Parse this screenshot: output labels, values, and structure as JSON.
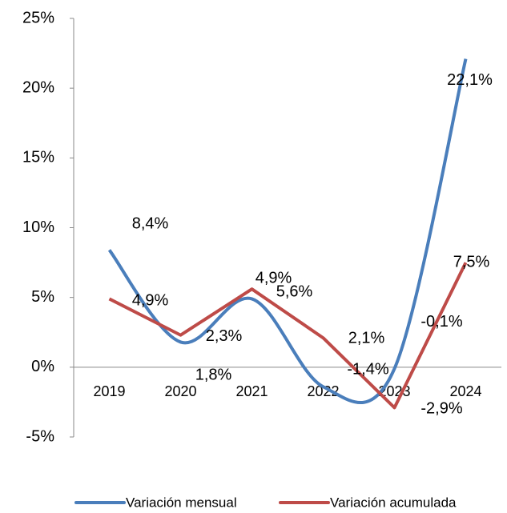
{
  "chart_data": {
    "type": "line",
    "categories": [
      "2019",
      "2020",
      "2021",
      "2022",
      "2023",
      "2024"
    ],
    "series": [
      {
        "name": "Variación mensual",
        "color": "#4a7ebb",
        "smooth": true,
        "values": [
          8.4,
          1.8,
          4.9,
          -1.4,
          -0.1,
          22.1
        ],
        "value_labels": [
          "8,4%",
          "1,8%",
          "4,9%",
          "-1,4%",
          "-0,1%",
          "22,1%"
        ]
      },
      {
        "name": "Variación acumulada",
        "color": "#be4b48",
        "smooth": false,
        "values": [
          4.9,
          2.3,
          5.6,
          2.1,
          -2.9,
          7.5
        ],
        "value_labels": [
          "4,9%",
          "2,3%",
          "5,6%",
          "2,1%",
          "-2,9%",
          "7,5%"
        ]
      }
    ],
    "ylim": [
      -5,
      25
    ],
    "yticks": [
      {
        "value": -5,
        "label": "-5%"
      },
      {
        "value": 0,
        "label": "0%"
      },
      {
        "value": 5,
        "label": "5%"
      },
      {
        "value": 10,
        "label": "10%"
      },
      {
        "value": 15,
        "label": "15%"
      },
      {
        "value": 20,
        "label": "20%"
      },
      {
        "value": 25,
        "label": "25%"
      }
    ],
    "legend": "bottom"
  }
}
